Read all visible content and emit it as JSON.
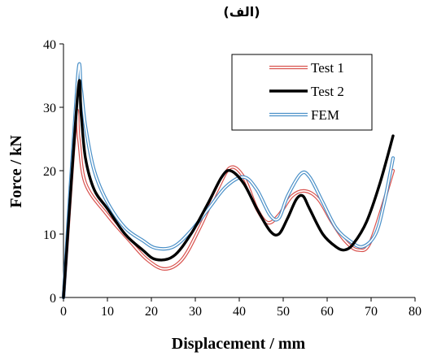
{
  "chart_data": {
    "type": "line",
    "title": "(الف)",
    "xlabel": "Displacement / mm",
    "ylabel": "Force / kN",
    "xlim": [
      0,
      80
    ],
    "ylim": [
      0,
      40
    ],
    "x_ticks": [
      0,
      10,
      20,
      30,
      40,
      50,
      60,
      70,
      80
    ],
    "y_ticks": [
      0,
      10,
      20,
      30,
      40
    ],
    "grid": false,
    "legend_position": "top-right",
    "series": [
      {
        "name": "Test 1",
        "color": "#d9534f",
        "style": "double-line",
        "points": [
          [
            0,
            0
          ],
          [
            2.8,
            28
          ],
          [
            3.5,
            25
          ],
          [
            5,
            18
          ],
          [
            10,
            13
          ],
          [
            15,
            9
          ],
          [
            19,
            6
          ],
          [
            23,
            4.5
          ],
          [
            27,
            6
          ],
          [
            31,
            11
          ],
          [
            35,
            17
          ],
          [
            38,
            20.5
          ],
          [
            41,
            19
          ],
          [
            44,
            14
          ],
          [
            46.5,
            11.8
          ],
          [
            49,
            13
          ],
          [
            52,
            16
          ],
          [
            55,
            16.8
          ],
          [
            58,
            15.5
          ],
          [
            61,
            12
          ],
          [
            64,
            9
          ],
          [
            67,
            7.5
          ],
          [
            70,
            9
          ],
          [
            75,
            20
          ]
        ]
      },
      {
        "name": "Test 2",
        "color": "#000000",
        "style": "thick-line",
        "points": [
          [
            0,
            0
          ],
          [
            3.3,
            32.5
          ],
          [
            4,
            29
          ],
          [
            5,
            22
          ],
          [
            7,
            17
          ],
          [
            10,
            14
          ],
          [
            14,
            10
          ],
          [
            18,
            7.5
          ],
          [
            21,
            6
          ],
          [
            25,
            6.5
          ],
          [
            29,
            10
          ],
          [
            33,
            15
          ],
          [
            36,
            19
          ],
          [
            38,
            20
          ],
          [
            41,
            18
          ],
          [
            44,
            14
          ],
          [
            47,
            10.5
          ],
          [
            49,
            10
          ],
          [
            51,
            12.5
          ],
          [
            53,
            15.5
          ],
          [
            54.5,
            16
          ],
          [
            56,
            14
          ],
          [
            59,
            10
          ],
          [
            62,
            8
          ],
          [
            64,
            7.5
          ],
          [
            66,
            8.5
          ],
          [
            69,
            12
          ],
          [
            72,
            18
          ],
          [
            75,
            25.5
          ]
        ]
      },
      {
        "name": "FEM",
        "color": "#4a90c8",
        "style": "double-line",
        "points": [
          [
            0,
            0
          ],
          [
            3.2,
            34.5
          ],
          [
            4,
            33
          ],
          [
            5,
            27
          ],
          [
            7,
            20
          ],
          [
            10,
            15
          ],
          [
            14,
            11
          ],
          [
            18,
            9
          ],
          [
            21,
            7.8
          ],
          [
            25,
            8
          ],
          [
            29,
            10.5
          ],
          [
            33,
            14
          ],
          [
            37,
            17.5
          ],
          [
            41,
            19
          ],
          [
            44,
            17
          ],
          [
            47,
            13
          ],
          [
            49,
            12.5
          ],
          [
            51,
            16
          ],
          [
            54,
            19.5
          ],
          [
            56,
            19
          ],
          [
            59,
            15
          ],
          [
            62,
            11
          ],
          [
            65,
            9
          ],
          [
            68,
            8
          ],
          [
            71,
            10
          ],
          [
            73,
            15
          ],
          [
            75,
            22
          ]
        ]
      }
    ]
  }
}
